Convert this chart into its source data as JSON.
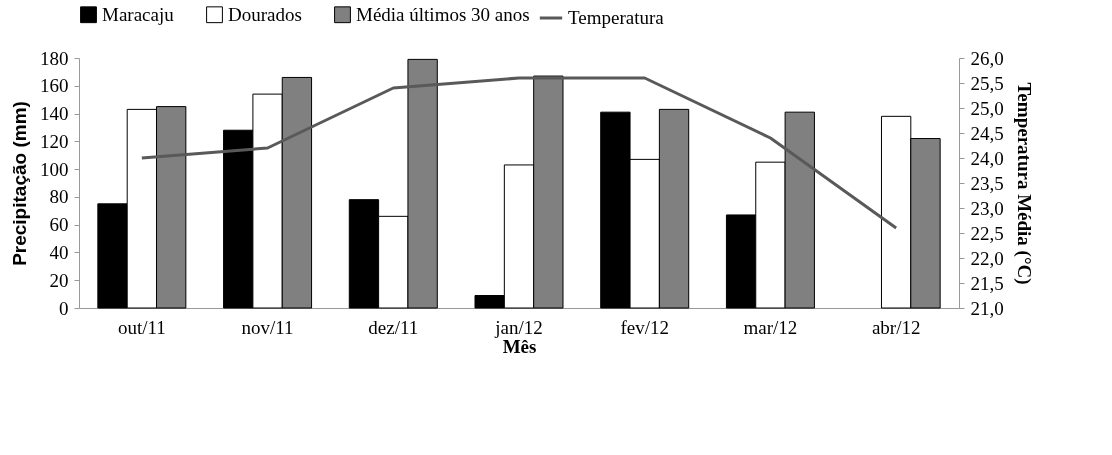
{
  "chart_data": {
    "type": "bar",
    "xlabel": "Mês",
    "ylabel": "Precipitação (mm)",
    "y2label": "Temperatura Média (°C)",
    "legend": "top",
    "categories": [
      "out/11",
      "nov/11",
      "dez/11",
      "jan/12",
      "fev/12",
      "mar/12",
      "abr/12"
    ],
    "series": [
      {
        "name": "Maracaju",
        "color": "#000000",
        "values": [
          75,
          128,
          78,
          9,
          141,
          67,
          null
        ]
      },
      {
        "name": "Dourados",
        "color": "#ffffff",
        "values": [
          143,
          154,
          66,
          103,
          107,
          105,
          138
        ]
      },
      {
        "name": "Média últimos 30 anos",
        "color": "#808080",
        "values": [
          145,
          166,
          179,
          167,
          143,
          141,
          122
        ]
      },
      {
        "name": "Temperatura",
        "color": "#595959",
        "type": "line",
        "axis": "y2",
        "values": [
          24.0,
          24.2,
          25.4,
          25.6,
          25.6,
          24.4,
          22.6
        ]
      }
    ],
    "ylim": [
      0,
      180
    ],
    "yticks": [
      0,
      20,
      40,
      60,
      80,
      100,
      120,
      140,
      160,
      180
    ],
    "y2lim": [
      21,
      26
    ],
    "y2ticks": [
      {
        "value": 21,
        "label": "21,0"
      },
      {
        "value": 21.5,
        "label": "21,5"
      },
      {
        "value": 22,
        "label": "22,0"
      },
      {
        "value": 22.5,
        "label": "22,5"
      },
      {
        "value": 23,
        "label": "23,0"
      },
      {
        "value": 23.5,
        "label": "23,5"
      },
      {
        "value": 24,
        "label": "24,0"
      },
      {
        "value": 24.5,
        "label": "24,5"
      },
      {
        "value": 25,
        "label": "25,0"
      },
      {
        "value": 25.5,
        "label": "25,5"
      },
      {
        "value": 26,
        "label": "26,0"
      }
    ]
  }
}
